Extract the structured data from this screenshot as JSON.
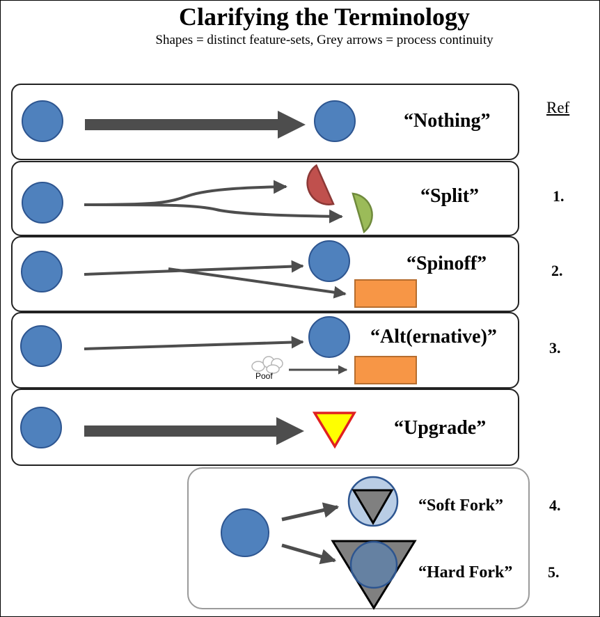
{
  "title": "Clarifying the Terminology",
  "subtitle": "Shapes = distinct feature-sets, Grey arrows = process continuity",
  "ref_header": "Ref",
  "rows": [
    {
      "label": "“Nothing”",
      "ref": ""
    },
    {
      "label": "“Split”",
      "ref": "1."
    },
    {
      "label": "“Spinoff”",
      "ref": "2."
    },
    {
      "label": "“Alt(ernative)”",
      "ref": "3.",
      "poof": "Poof"
    },
    {
      "label": "“Upgrade”",
      "ref": ""
    }
  ],
  "forks": [
    {
      "label": "“Soft Fork”",
      "ref": "4."
    },
    {
      "label": "“Hard Fork”",
      "ref": "5."
    }
  ],
  "colors": {
    "blue_circle": "#4f81bd",
    "blue_stroke": "#2d5590",
    "arrow_grey": "#4d4d4d",
    "red_half": "#c0504d",
    "green_half": "#9bbb59",
    "orange_rect": "#f79646",
    "yellow_triangle": "#ffff00",
    "grey_triangle": "#808080",
    "light_blue_circle": "#b9cde5"
  }
}
